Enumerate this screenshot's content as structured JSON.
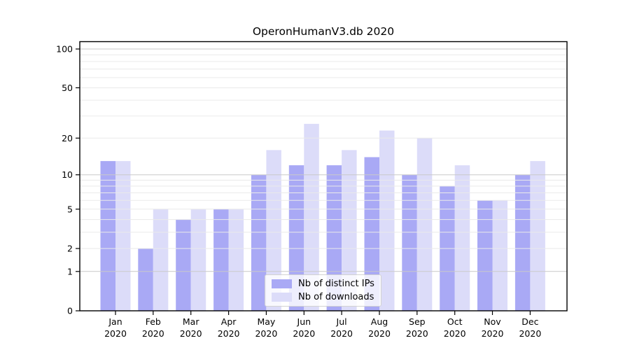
{
  "chart_data": {
    "type": "bar",
    "title": "OperonHumanV3.db 2020",
    "categories": [
      "Jan 2020",
      "Feb 2020",
      "Mar 2020",
      "Apr 2020",
      "May 2020",
      "Jun 2020",
      "Jul 2020",
      "Aug 2020",
      "Sep 2020",
      "Oct 2020",
      "Nov 2020",
      "Dec 2020"
    ],
    "x_tick_labels": [
      [
        "Jan",
        "2020"
      ],
      [
        "Feb",
        "2020"
      ],
      [
        "Mar",
        "2020"
      ],
      [
        "Apr",
        "2020"
      ],
      [
        "May",
        "2020"
      ],
      [
        "Jun",
        "2020"
      ],
      [
        "Jul",
        "2020"
      ],
      [
        "Aug",
        "2020"
      ],
      [
        "Sep",
        "2020"
      ],
      [
        "Oct",
        "2020"
      ],
      [
        "Nov",
        "2020"
      ],
      [
        "Dec",
        "2020"
      ]
    ],
    "series": [
      {
        "name": "Nb of distinct IPs",
        "color": "#a9a9f5",
        "values": [
          13,
          2,
          4,
          5,
          10,
          12,
          12,
          14,
          10,
          8,
          6,
          10
        ]
      },
      {
        "name": "Nb of downloads",
        "color": "#dcdcf9",
        "values": [
          13,
          5,
          5,
          5,
          16,
          26,
          16,
          23,
          20,
          12,
          6,
          13
        ]
      }
    ],
    "yscale": "log1p",
    "ylim": [
      0,
      114
    ],
    "y_ticks": [
      0,
      1,
      2,
      5,
      10,
      20,
      50,
      100
    ],
    "y_gridlines_major": [
      1,
      10,
      100
    ],
    "y_gridlines_minor": [
      2,
      3,
      4,
      5,
      6,
      7,
      8,
      9,
      20,
      30,
      40,
      50,
      60,
      70,
      80,
      90
    ],
    "grid": true,
    "legend_position": "lower center",
    "colors": {
      "major_grid": "#c9c9c9",
      "minor_grid": "#eaeaea",
      "spine": "#000000",
      "text": "#000000",
      "background": "#ffffff"
    }
  }
}
